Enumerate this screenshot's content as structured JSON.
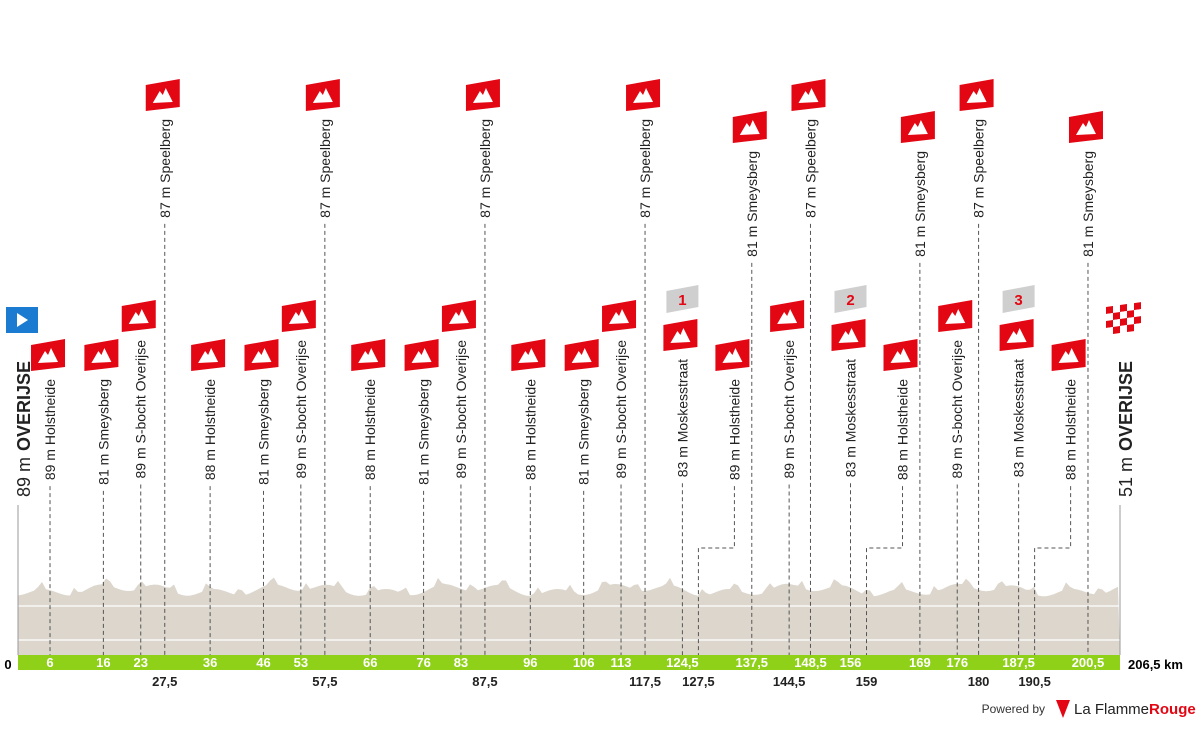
{
  "start": {
    "elevation": "89 m",
    "name": "OVERIJSE"
  },
  "finish": {
    "elevation": "51 m",
    "name": "OVERIJSE"
  },
  "axis_start": "0",
  "axis_end": "206,5 km",
  "waypoints": [
    {
      "km": "6",
      "name": "89 m Holstheide"
    },
    {
      "km": "16",
      "name": "81 m Smeysberg"
    },
    {
      "km": "23",
      "name": "89 m S-bocht Overijse"
    },
    {
      "km": "27,5",
      "name": "87 m Speelberg"
    },
    {
      "km": "36",
      "name": "88 m Holstheide"
    },
    {
      "km": "46",
      "name": "81 m Smeysberg"
    },
    {
      "km": "53",
      "name": "89 m S-bocht Overijse"
    },
    {
      "km": "57,5",
      "name": "87 m Speelberg"
    },
    {
      "km": "66",
      "name": "88 m Holstheide"
    },
    {
      "km": "76",
      "name": "81 m Smeysberg"
    },
    {
      "km": "83",
      "name": "89 m S-bocht Overijse"
    },
    {
      "km": "87,5",
      "name": "87 m Speelberg"
    },
    {
      "km": "96",
      "name": "88 m Holstheide"
    },
    {
      "km": "106",
      "name": "81 m Smeysberg"
    },
    {
      "km": "113",
      "name": "89 m S-bocht Overijse"
    },
    {
      "km": "117,5",
      "name": "87 m Speelberg"
    },
    {
      "km": "124,5",
      "name": "83 m Moskesstraat",
      "sprint": "1"
    },
    {
      "km": "127,5",
      "name": "89 m Holstheide"
    },
    {
      "km": "137,5",
      "name": "81 m Smeysberg"
    },
    {
      "km": "144,5",
      "name": "89 m S-bocht Overijse"
    },
    {
      "km": "148,5",
      "name": "87 m Speelberg"
    },
    {
      "km": "156",
      "name": "83 m Moskesstraat",
      "sprint": "2"
    },
    {
      "km": "159",
      "name": "88 m Holstheide"
    },
    {
      "km": "169",
      "name": "81 m Smeysberg"
    },
    {
      "km": "176",
      "name": "89 m S-bocht Overijse"
    },
    {
      "km": "180",
      "name": "87 m Speelberg"
    },
    {
      "km": "187,5",
      "name": "83 m Moskesstraat",
      "sprint": "3"
    },
    {
      "km": "190,5",
      "name": "88 m Holstheide"
    },
    {
      "km": "200,5",
      "name": "81 m Smeysberg"
    }
  ],
  "footer": {
    "powered": "Powered by",
    "brand_a": "La Flamme",
    "brand_b": "Rouge"
  }
}
